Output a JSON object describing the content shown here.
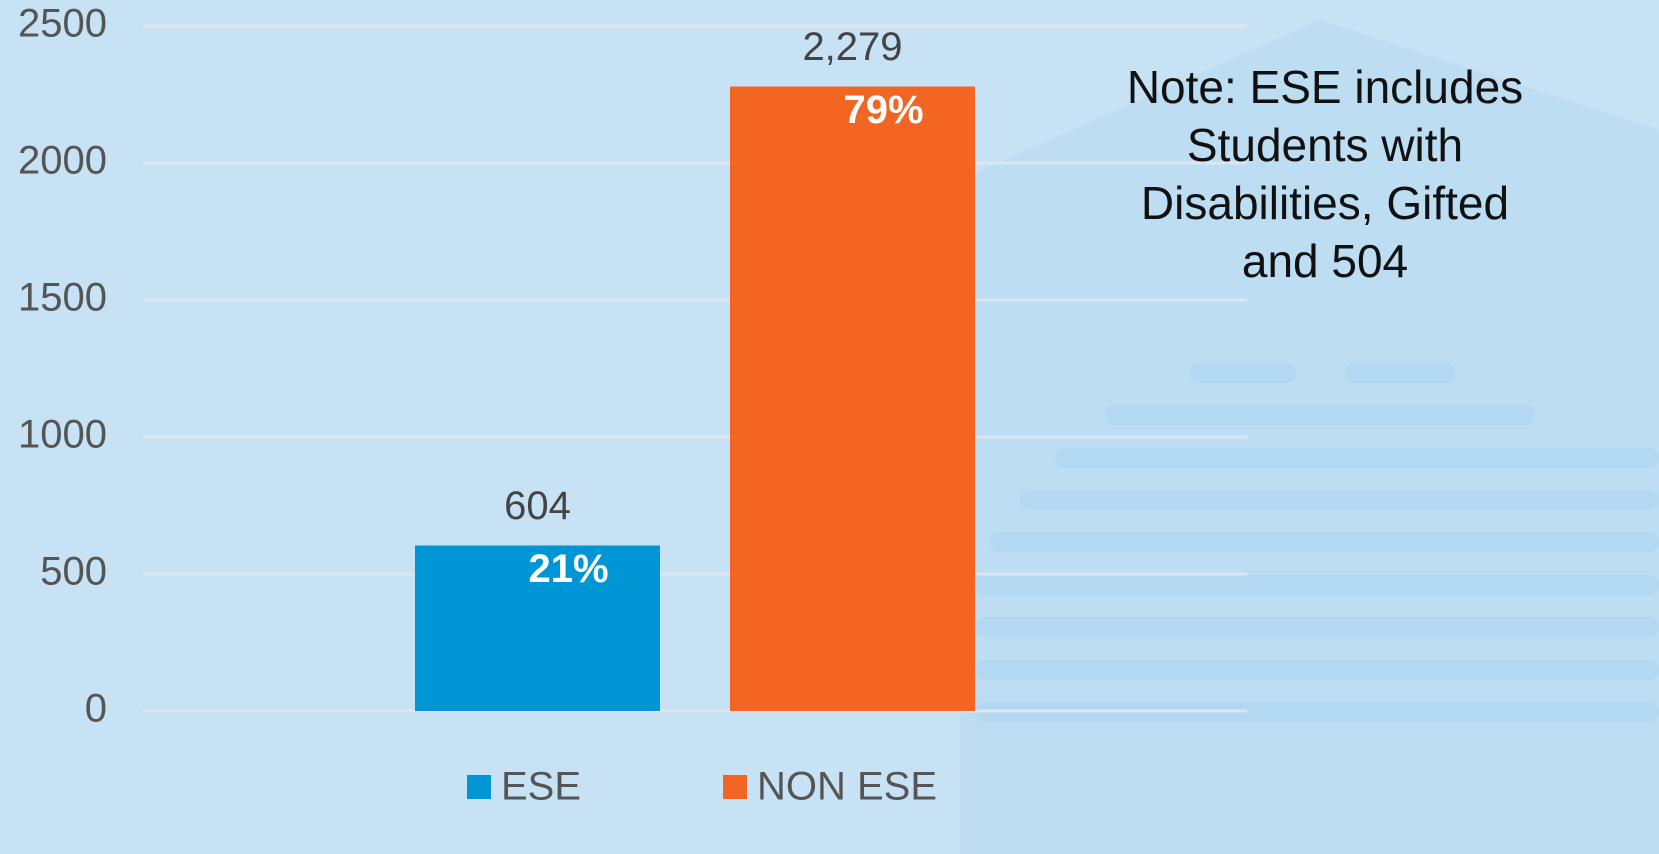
{
  "chart_data": {
    "type": "bar",
    "categories": [
      null
    ],
    "series": [
      {
        "name": "ESE",
        "color": "#0096d6",
        "values": [
          604
        ],
        "percent_labels": [
          "21%"
        ]
      },
      {
        "name": "NON ESE",
        "color": "#f26522",
        "values": [
          2279
        ],
        "value_labels": [
          "2,279"
        ],
        "percent_labels": [
          "79%"
        ]
      }
    ],
    "ylim": [
      0,
      2500
    ],
    "yticks": [
      0,
      500,
      1000,
      1500,
      2000,
      2500
    ],
    "grid": true,
    "legend": "bottom",
    "annotation": "Note: ESE includes Students with Disabilities, Gifted and 504"
  }
}
